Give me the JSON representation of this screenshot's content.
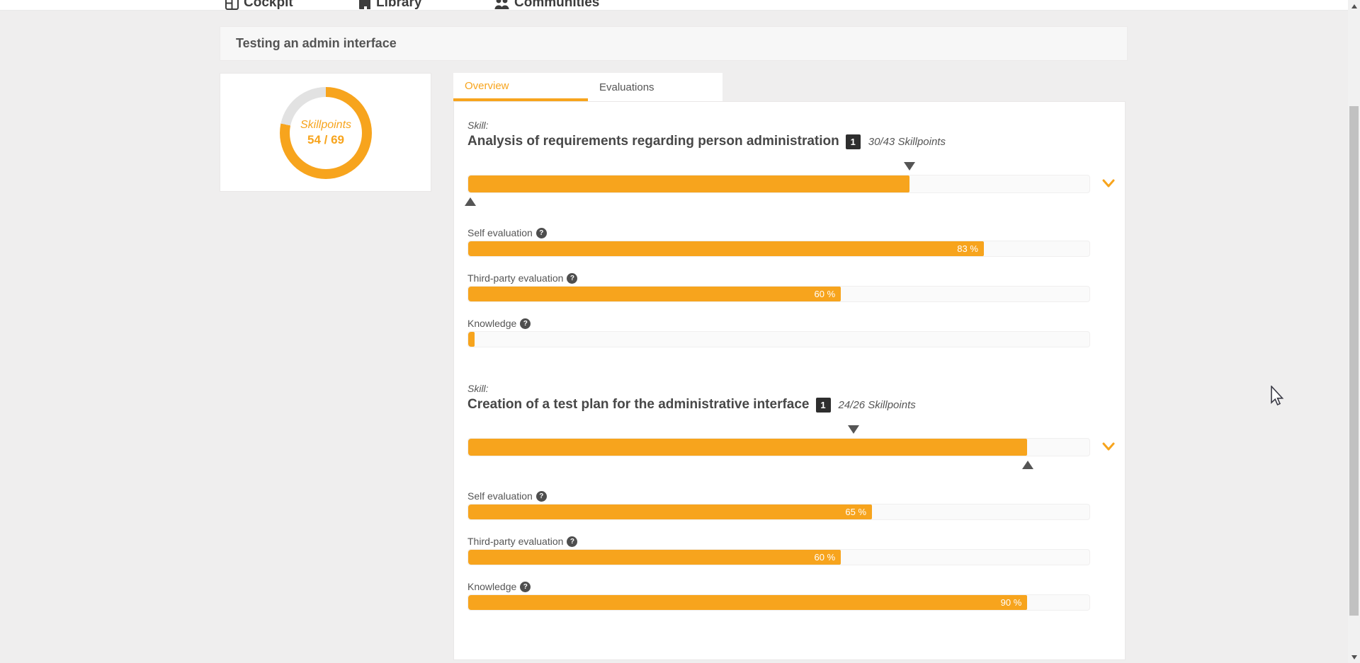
{
  "colors": {
    "accent": "#f7a41d",
    "donut_rest": "#e2e2e2",
    "badge_bg": "#2e2e2e",
    "track_bg": "#fafafa"
  },
  "nav": {
    "items": [
      {
        "label": "Cockpit",
        "icon": "cockpit-icon"
      },
      {
        "label": "Library",
        "icon": "library-icon"
      },
      {
        "label": "Communities",
        "icon": "communities-icon"
      }
    ]
  },
  "header": {
    "title": "Testing an admin interface"
  },
  "summary": {
    "donut": {
      "label": "Skillpoints",
      "value_text": "54 / 69",
      "value": 54,
      "max": 69,
      "pct": 78.3
    }
  },
  "tabs": [
    {
      "label": "Overview",
      "active": true
    },
    {
      "label": "Evaluations",
      "active": false
    }
  ],
  "skills": [
    {
      "prefix": "Skill:",
      "title": "Analysis of requirements regarding person administration",
      "badge": "1",
      "skillpoints_label": "30/43 Skillpoints",
      "main_bar": {
        "pct": 71,
        "marker_top_pct": 71,
        "marker_bottom_pct": 0.5
      },
      "bars": [
        {
          "label": "Self evaluation",
          "pct": 83,
          "value_label": "83 %"
        },
        {
          "label": "Third-party evaluation",
          "pct": 60,
          "value_label": "60 %"
        },
        {
          "label": "Knowledge",
          "pct": 1,
          "value_label": ""
        }
      ]
    },
    {
      "prefix": "Skill:",
      "title": "Creation of a test plan for the administrative interface",
      "badge": "1",
      "skillpoints_label": "24/26 Skillpoints",
      "main_bar": {
        "pct": 90,
        "marker_top_pct": 62,
        "marker_bottom_pct": 90
      },
      "bars": [
        {
          "label": "Self evaluation",
          "pct": 65,
          "value_label": "65 %"
        },
        {
          "label": "Third-party evaluation",
          "pct": 60,
          "value_label": "60 %"
        },
        {
          "label": "Knowledge",
          "pct": 90,
          "value_label": "90 %"
        }
      ]
    }
  ],
  "help_icon_glyph": "?"
}
